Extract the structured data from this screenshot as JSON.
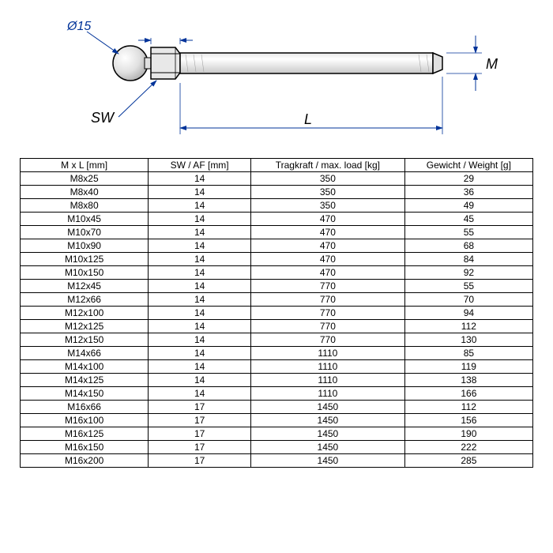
{
  "diagram": {
    "diameter_label": "Ø15",
    "sw_label": "SW",
    "l_label": "L",
    "m_label": "M",
    "colors": {
      "stroke": "#000000",
      "dim_line": "#003399",
      "fill_light": "#f5f5f5",
      "fill_shadow": "#d0d0d0"
    }
  },
  "table": {
    "headers": [
      "M x L [mm]",
      "SW / AF [mm]",
      "Tragkraft / max. load [kg]",
      "Gewicht / Weight [g]"
    ],
    "rows": [
      [
        "M8x25",
        "14",
        "350",
        "29"
      ],
      [
        "M8x40",
        "14",
        "350",
        "36"
      ],
      [
        "M8x80",
        "14",
        "350",
        "49"
      ],
      [
        "M10x45",
        "14",
        "470",
        "45"
      ],
      [
        "M10x70",
        "14",
        "470",
        "55"
      ],
      [
        "M10x90",
        "14",
        "470",
        "68"
      ],
      [
        "M10x125",
        "14",
        "470",
        "84"
      ],
      [
        "M10x150",
        "14",
        "470",
        "92"
      ],
      [
        "M12x45",
        "14",
        "770",
        "55"
      ],
      [
        "M12x66",
        "14",
        "770",
        "70"
      ],
      [
        "M12x100",
        "14",
        "770",
        "94"
      ],
      [
        "M12x125",
        "14",
        "770",
        "112"
      ],
      [
        "M12x150",
        "14",
        "770",
        "130"
      ],
      [
        "M14x66",
        "14",
        "1110",
        "85"
      ],
      [
        "M14x100",
        "14",
        "1110",
        "119"
      ],
      [
        "M14x125",
        "14",
        "1110",
        "138"
      ],
      [
        "M14x150",
        "14",
        "1110",
        "166"
      ],
      [
        "M16x66",
        "17",
        "1450",
        "112"
      ],
      [
        "M16x100",
        "17",
        "1450",
        "156"
      ],
      [
        "M16x125",
        "17",
        "1450",
        "190"
      ],
      [
        "M16x150",
        "17",
        "1450",
        "222"
      ],
      [
        "M16x200",
        "17",
        "1450",
        "285"
      ]
    ],
    "col_widths": [
      "25%",
      "20%",
      "30%",
      "25%"
    ]
  }
}
